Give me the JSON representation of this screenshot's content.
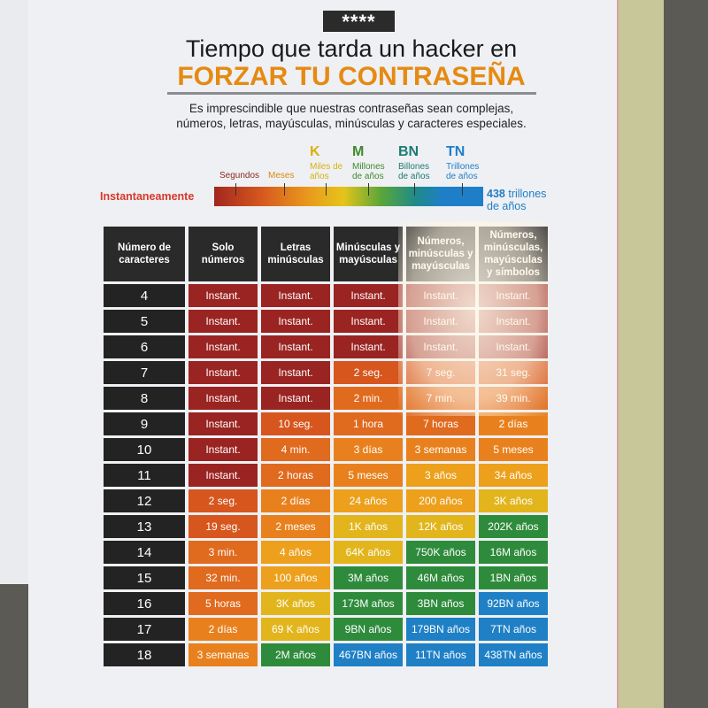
{
  "badge": "****",
  "title_line1": "Tiempo que tarda un hacker en",
  "title_line2": "FORZAR TU CONTRASEÑA",
  "subtitle_line1": "Es imprescindible que nuestras  contraseñas sean complejas,",
  "subtitle_line2": "números, letras, mayúsculas, minúsculas y caracteres especiales.",
  "scale": {
    "left": "Instantaneamente",
    "right_num": "438",
    "right_text": "trillones",
    "right_text2": "de años",
    "labels": [
      {
        "big": "",
        "text": "Segundos",
        "color": "#8a2a1e"
      },
      {
        "big": "",
        "text": "Meses",
        "color": "#d98a12"
      },
      {
        "big": "K",
        "text": "Miles de años",
        "color": "#d8b20f"
      },
      {
        "big": "M",
        "text": "Millones de años",
        "color": "#3e8a2c"
      },
      {
        "big": "BN",
        "text": "Billones de años",
        "color": "#1a7c73"
      },
      {
        "big": "TN",
        "text": "Trillones de años",
        "color": "#1e7fc8"
      }
    ]
  },
  "colors": {
    "i": "#9a2422",
    "s": "#d6561e",
    "m": "#e06a1e",
    "d": "#e8811d",
    "y": "#eca01b",
    "k": "#e2b51c",
    "g": "#2f8b3c",
    "b": "#1f80c6"
  },
  "table": {
    "headers": [
      "Número de caracteres",
      "Solo números",
      "Letras minúsculas",
      "Minúsculas y mayúsculas",
      "Números, minúsculas y mayúsculas",
      "Números, minúsculas, mayúsculas y símbolos"
    ],
    "rows": [
      {
        "n": "4",
        "cells": [
          [
            "Instant.",
            "i"
          ],
          [
            "Instant.",
            "i"
          ],
          [
            "Instant.",
            "i"
          ],
          [
            "Instant.",
            "i"
          ],
          [
            "Instant.",
            "i"
          ]
        ]
      },
      {
        "n": "5",
        "cells": [
          [
            "Instant.",
            "i"
          ],
          [
            "Instant.",
            "i"
          ],
          [
            "Instant.",
            "i"
          ],
          [
            "Instant.",
            "i"
          ],
          [
            "Instant.",
            "i"
          ]
        ]
      },
      {
        "n": "6",
        "cells": [
          [
            "Instant.",
            "i"
          ],
          [
            "Instant.",
            "i"
          ],
          [
            "Instant.",
            "i"
          ],
          [
            "Instant.",
            "i"
          ],
          [
            "Instant.",
            "i"
          ]
        ]
      },
      {
        "n": "7",
        "cells": [
          [
            "Instant.",
            "i"
          ],
          [
            "Instant.",
            "i"
          ],
          [
            "2 seg.",
            "s"
          ],
          [
            "7 seg.",
            "s"
          ],
          [
            "31 seg.",
            "s"
          ]
        ]
      },
      {
        "n": "8",
        "cells": [
          [
            "Instant.",
            "i"
          ],
          [
            "Instant.",
            "i"
          ],
          [
            "2 min.",
            "m"
          ],
          [
            "7 min.",
            "m"
          ],
          [
            "39 min.",
            "m"
          ]
        ]
      },
      {
        "n": "9",
        "cells": [
          [
            "Instant.",
            "i"
          ],
          [
            "10 seg.",
            "s"
          ],
          [
            "1 hora",
            "m"
          ],
          [
            "7 horas",
            "m"
          ],
          [
            "2 días",
            "d"
          ]
        ]
      },
      {
        "n": "10",
        "cells": [
          [
            "Instant.",
            "i"
          ],
          [
            "4 min.",
            "m"
          ],
          [
            "3 días",
            "d"
          ],
          [
            "3 semanas",
            "d"
          ],
          [
            "5 meses",
            "d"
          ]
        ]
      },
      {
        "n": "11",
        "cells": [
          [
            "Instant.",
            "i"
          ],
          [
            "2 horas",
            "m"
          ],
          [
            "5 meses",
            "d"
          ],
          [
            "3 años",
            "y"
          ],
          [
            "34 años",
            "y"
          ]
        ]
      },
      {
        "n": "12",
        "cells": [
          [
            "2 seg.",
            "s"
          ],
          [
            "2 días",
            "d"
          ],
          [
            "24 años",
            "y"
          ],
          [
            "200 años",
            "y"
          ],
          [
            "3K años",
            "k"
          ]
        ]
      },
      {
        "n": "13",
        "cells": [
          [
            "19 seg.",
            "s"
          ],
          [
            "2 meses",
            "d"
          ],
          [
            "1K años",
            "k"
          ],
          [
            "12K años",
            "k"
          ],
          [
            "202K años",
            "g"
          ]
        ]
      },
      {
        "n": "14",
        "cells": [
          [
            "3 min.",
            "m"
          ],
          [
            "4 años",
            "y"
          ],
          [
            "64K años",
            "k"
          ],
          [
            "750K años",
            "g"
          ],
          [
            "16M años",
            "g"
          ]
        ]
      },
      {
        "n": "15",
        "cells": [
          [
            "32 min.",
            "m"
          ],
          [
            "100 años",
            "y"
          ],
          [
            "3M años",
            "g"
          ],
          [
            "46M años",
            "g"
          ],
          [
            "1BN años",
            "g"
          ]
        ]
      },
      {
        "n": "16",
        "cells": [
          [
            "5 horas",
            "m"
          ],
          [
            "3K años",
            "k"
          ],
          [
            "173M años",
            "g"
          ],
          [
            "3BN años",
            "g"
          ],
          [
            "92BN años",
            "b"
          ]
        ]
      },
      {
        "n": "17",
        "cells": [
          [
            "2 días",
            "d"
          ],
          [
            "69 K años",
            "k"
          ],
          [
            "9BN años",
            "g"
          ],
          [
            "179BN años",
            "b"
          ],
          [
            "7TN años",
            "b"
          ]
        ]
      },
      {
        "n": "18",
        "cells": [
          [
            "3 semanas",
            "d"
          ],
          [
            "2M años",
            "g"
          ],
          [
            "467BN años",
            "b"
          ],
          [
            "11TN años",
            "b"
          ],
          [
            "438TN años",
            "b"
          ]
        ]
      }
    ]
  }
}
